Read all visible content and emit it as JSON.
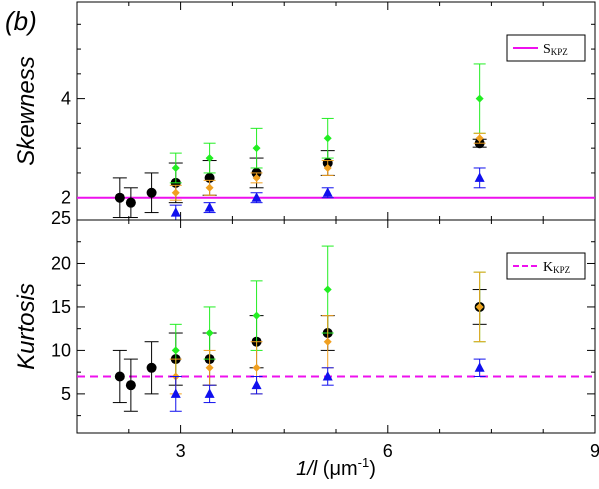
{
  "panel_label": "(b)",
  "colors": {
    "axis": "#000000",
    "green": "#22ee22",
    "orange": "#f0a020",
    "black": "#000000",
    "blue": "#1010ee",
    "kpz": "#ee10ee"
  },
  "chart_data": [
    {
      "type": "scatter",
      "panel": "top",
      "ylabel": "Skewness",
      "xlim": [
        1.5,
        9
      ],
      "ylim": [
        1.55,
        5.95
      ],
      "xticks": [
        3,
        6,
        9
      ],
      "yticks": [
        2,
        4
      ],
      "ytick_labels": [
        "2",
        "4"
      ],
      "minor_y_step": 0.5,
      "legend": {
        "label": "S",
        "sub": "KPZ",
        "style": "solid",
        "position": "top-right"
      },
      "reference_line": {
        "y": 2.0,
        "style": "solid"
      },
      "series": [
        {
          "marker": "circle",
          "color": "black",
          "x": [
            2.12,
            2.28,
            2.58,
            2.93,
            3.42,
            4.1,
            5.13,
            7.33
          ],
          "y": [
            2.0,
            1.9,
            2.1,
            2.3,
            2.4,
            2.5,
            2.7,
            3.1
          ],
          "err": [
            0.4,
            0.3,
            0.4,
            0.4,
            0.35,
            0.3,
            0.25,
            0.08
          ]
        },
        {
          "marker": "diamond",
          "color": "green",
          "x": [
            2.93,
            3.42,
            4.1,
            5.13,
            7.33
          ],
          "y": [
            2.6,
            2.8,
            3.0,
            3.2,
            4.0
          ],
          "err": [
            0.3,
            0.3,
            0.4,
            0.4,
            0.7
          ]
        },
        {
          "marker": "diamond",
          "color": "orange",
          "x": [
            2.93,
            3.42,
            4.1,
            5.13,
            7.33
          ],
          "y": [
            2.1,
            2.2,
            2.4,
            2.6,
            3.2
          ],
          "err": [
            0.15,
            0.15,
            0.1,
            0.15,
            0.1
          ]
        },
        {
          "marker": "triangle",
          "color": "blue",
          "x": [
            2.93,
            3.42,
            4.1,
            5.13,
            7.33
          ],
          "y": [
            1.7,
            1.8,
            2.0,
            2.1,
            2.4
          ],
          "err": [
            0.15,
            0.1,
            0.1,
            0.1,
            0.2
          ]
        }
      ]
    },
    {
      "type": "scatter",
      "panel": "bottom",
      "ylabel": "Kurtosis",
      "xlabel": "1/l",
      "xlabel_unit": "(μm",
      "xlabel_unit_exp": "-1",
      "xlabel_close": ")",
      "xlim": [
        1.5,
        9
      ],
      "ylim": [
        0.5,
        25
      ],
      "xticks": [
        3,
        6,
        9
      ],
      "yticks": [
        5,
        10,
        15,
        20,
        25
      ],
      "ytick_labels": [
        "5",
        "10",
        "15",
        "20",
        "25"
      ],
      "minor_y_step": 2.5,
      "legend": {
        "label": "K",
        "sub": "KPZ",
        "style": "dashed",
        "position": "top-right"
      },
      "reference_line": {
        "y": 7.0,
        "style": "dashed"
      },
      "series": [
        {
          "marker": "circle",
          "color": "black",
          "x": [
            2.12,
            2.28,
            2.58,
            2.93,
            3.42,
            4.1,
            5.13,
            7.33
          ],
          "y": [
            7,
            6,
            8,
            9,
            9,
            11,
            12,
            15
          ],
          "err": [
            3,
            3,
            3,
            3,
            3,
            3,
            2,
            2
          ]
        },
        {
          "marker": "diamond",
          "color": "green",
          "x": [
            2.93,
            3.42,
            4.1,
            5.13,
            7.33
          ],
          "y": [
            10,
            12,
            14,
            17,
            15
          ],
          "err": [
            3,
            3,
            4,
            5,
            4
          ]
        },
        {
          "marker": "diamond",
          "color": "orange",
          "x": [
            2.93,
            3.42,
            4.1,
            5.13,
            7.33
          ],
          "y": [
            7,
            8,
            8,
            11,
            15
          ],
          "err": [
            2,
            2,
            3,
            3,
            4
          ]
        },
        {
          "marker": "triangle",
          "color": "blue",
          "x": [
            2.93,
            3.42,
            4.1,
            5.13,
            7.33
          ],
          "y": [
            5,
            5,
            6,
            7,
            8
          ],
          "err": [
            2,
            1,
            1,
            1,
            1
          ]
        }
      ]
    }
  ]
}
